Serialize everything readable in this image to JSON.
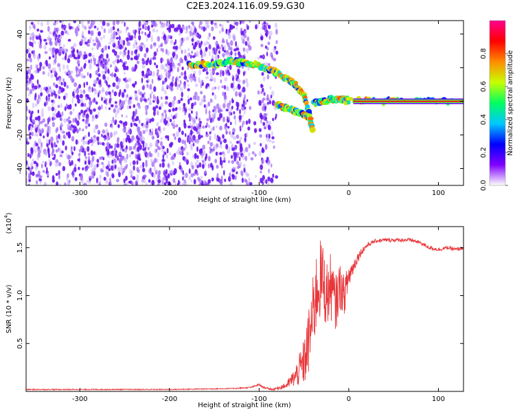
{
  "title": "C2E3.2024.116.09.59.G30",
  "colors": {
    "series": "#e8363a",
    "spectrogram_background": "#ffffff",
    "speckle": "#7a2cf0"
  },
  "colorbar": {
    "label": "Normalized spectral amplitude",
    "ticks": [
      "0.0",
      "0.2",
      "0.4",
      "0.6",
      "0.8"
    ],
    "range": [
      0,
      1
    ],
    "colormap": [
      "#ffffff",
      "#7f00ff",
      "#0000ff",
      "#00c8ff",
      "#00ff60",
      "#c8ff00",
      "#ff8c00",
      "#ff0000",
      "#ff0090"
    ]
  },
  "chart_data": [
    {
      "type": "heatmap",
      "title": "C2E3.2024.116.09.59.G30",
      "xlabel": "Height of straight line (km)",
      "ylabel": "Frequency (Hz)",
      "xlim": [
        -360,
        128
      ],
      "ylim": [
        -50,
        48
      ],
      "x_ticks": [
        -300,
        -200,
        -100,
        0,
        100
      ],
      "y_ticks": [
        -40,
        -20,
        0,
        20,
        40
      ],
      "noise_region_x": [
        -360,
        -80
      ],
      "signal_ridges": [
        {
          "x": [
            -178,
            -150,
            -130,
            -115,
            -100,
            -85,
            -70,
            -60,
            -50,
            -45,
            -40
          ],
          "y": [
            22,
            22,
            24,
            23,
            21,
            18,
            14,
            10,
            4,
            -6,
            -18
          ]
        },
        {
          "x": [
            -80,
            -70,
            -60,
            -50,
            -42
          ],
          "y": [
            -2,
            -4,
            -6,
            -8,
            -10
          ]
        },
        {
          "x": [
            -40,
            -30,
            -20,
            -10,
            0,
            50,
            128
          ],
          "y": [
            -1,
            0,
            1,
            1,
            0.5,
            0,
            0
          ]
        }
      ],
      "carrier": {
        "x": [
          5,
          128
        ],
        "y": 0,
        "amplitude": 0.9
      }
    },
    {
      "type": "line",
      "xlabel": "Height of straight line (km)",
      "ylabel": "SNR (10 * v/v)",
      "scale_label": "(x10",
      "scale_exponent": "4",
      "scale_suffix": ")",
      "xlim": [
        -360,
        128
      ],
      "ylim": [
        0,
        1.72
      ],
      "x_ticks": [
        -300,
        -200,
        -100,
        0,
        100
      ],
      "y_ticks": [
        0.5,
        1.0,
        1.5
      ],
      "y_tick_labels": [
        "0.5",
        "1.0",
        "1.5"
      ],
      "series": [
        {
          "x": [
            -360,
            -300,
            -200,
            -130,
            -110,
            -100,
            -95,
            -85,
            -70,
            -60,
            -50,
            -45,
            -40,
            -35,
            -30,
            -25,
            -20,
            -15,
            -10,
            -5,
            0,
            5,
            10,
            15,
            20,
            25,
            30,
            40,
            50,
            60,
            70,
            80,
            90,
            100,
            110,
            120,
            128
          ],
          "y": [
            0.02,
            0.02,
            0.02,
            0.03,
            0.04,
            0.07,
            0.04,
            0.02,
            0.06,
            0.15,
            0.3,
            0.5,
            0.8,
            1.1,
            1.2,
            1.0,
            1.1,
            0.9,
            1.1,
            1.0,
            1.2,
            1.3,
            1.4,
            1.47,
            1.52,
            1.55,
            1.57,
            1.58,
            1.58,
            1.58,
            1.58,
            1.55,
            1.5,
            1.48,
            1.5,
            1.48,
            1.5
          ],
          "noise_amplitude": [
            0.005,
            0.005,
            0.005,
            0.005,
            0.008,
            0.01,
            0.008,
            0.01,
            0.03,
            0.1,
            0.25,
            0.35,
            0.4,
            0.45,
            0.4,
            0.35,
            0.35,
            0.3,
            0.25,
            0.2,
            0.15,
            0.08,
            0.05,
            0.04,
            0.03,
            0.02,
            0.02,
            0.02,
            0.02,
            0.02,
            0.02,
            0.02,
            0.02,
            0.02,
            0.02,
            0.02,
            0.02
          ]
        }
      ]
    }
  ]
}
